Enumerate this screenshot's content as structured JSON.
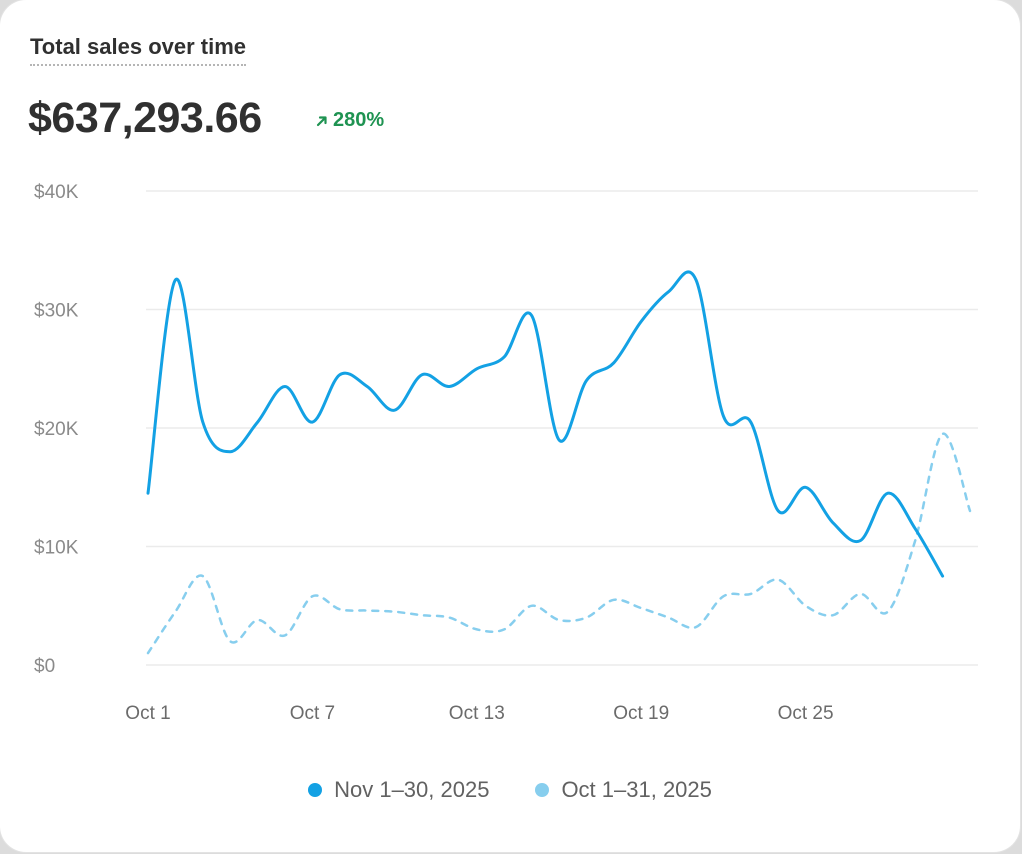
{
  "card": {
    "title": "Total sales over time",
    "total": "$637,293.66",
    "change": "280%",
    "change_icon": "arrow-up-right-icon",
    "change_color": "#1f9352"
  },
  "chart_data": {
    "type": "line",
    "title": "Total sales over time",
    "x_tick_labels": [
      "Oct 1",
      "Oct 7",
      "Oct 13",
      "Oct 19",
      "Oct 25"
    ],
    "y_tick_labels": [
      "$0",
      "$10K",
      "$20K",
      "$30K",
      "$40K"
    ],
    "ylim": [
      0,
      40000
    ],
    "y_ticks": [
      0,
      10000,
      20000,
      30000,
      40000
    ],
    "grid": true,
    "legend_position": "bottom",
    "series": [
      {
        "name": "Nov 1–30, 2025",
        "color": "#13a1e4",
        "style": "solid",
        "values": [
          14500,
          32500,
          20500,
          18000,
          20500,
          23500,
          20500,
          24500,
          23500,
          21500,
          24500,
          23500,
          25000,
          26000,
          29500,
          19000,
          24000,
          25500,
          29000,
          31500,
          32500,
          21000,
          20500,
          13000,
          15000,
          12000,
          10500,
          14500,
          11500,
          7500
        ]
      },
      {
        "name": "Oct 1–31, 2025",
        "color": "#87ceee",
        "style": "dashed",
        "values": [
          1000,
          4500,
          7500,
          2000,
          3800,
          2500,
          5800,
          4700,
          4600,
          4500,
          4200,
          4000,
          3000,
          3000,
          5000,
          3800,
          4000,
          5500,
          4800,
          4000,
          3200,
          5800,
          6000,
          7200,
          5000,
          4200,
          6000,
          4500,
          10500,
          19500,
          13000
        ]
      }
    ]
  }
}
